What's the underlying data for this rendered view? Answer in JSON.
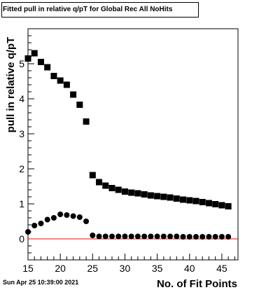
{
  "chart_data": {
    "type": "scatter",
    "title": "Fitted pull in relative q/pT for Global Rec All NoHits",
    "xlabel": "No. of Fit Points",
    "ylabel": "pull in relative q/pT",
    "xlim": [
      15,
      47.5
    ],
    "ylim": [
      -0.6,
      6
    ],
    "x_ticks": [
      15,
      20,
      25,
      30,
      35,
      40,
      45
    ],
    "y_ticks": [
      0,
      1,
      2,
      3,
      4,
      5
    ],
    "reference_line": {
      "y": 0,
      "color": "#ff0000"
    },
    "series": [
      {
        "marker": "square",
        "color": "#000000",
        "points": [
          [
            15,
            5.15
          ],
          [
            16,
            5.3
          ],
          [
            17,
            5.05
          ],
          [
            18,
            4.9
          ],
          [
            19,
            4.65
          ],
          [
            20,
            4.52
          ],
          [
            21,
            4.4
          ],
          [
            22,
            4.12
          ],
          [
            23,
            3.83
          ],
          [
            24,
            3.35
          ],
          [
            25,
            1.82
          ],
          [
            26,
            1.62
          ],
          [
            27,
            1.52
          ],
          [
            28,
            1.45
          ],
          [
            29,
            1.4
          ],
          [
            30,
            1.35
          ],
          [
            31,
            1.32
          ],
          [
            32,
            1.3
          ],
          [
            33,
            1.27
          ],
          [
            34,
            1.24
          ],
          [
            35,
            1.22
          ],
          [
            36,
            1.2
          ],
          [
            37,
            1.18
          ],
          [
            38,
            1.15
          ],
          [
            39,
            1.12
          ],
          [
            40,
            1.1
          ],
          [
            41,
            1.08
          ],
          [
            42,
            1.05
          ],
          [
            43,
            1.02
          ],
          [
            44,
            0.99
          ],
          [
            45,
            0.96
          ],
          [
            46,
            0.93
          ]
        ]
      },
      {
        "marker": "circle",
        "color": "#000000",
        "points": [
          [
            15,
            0.2
          ],
          [
            16,
            0.38
          ],
          [
            17,
            0.44
          ],
          [
            18,
            0.55
          ],
          [
            19,
            0.6
          ],
          [
            20,
            0.7
          ],
          [
            21,
            0.68
          ],
          [
            22,
            0.65
          ],
          [
            23,
            0.62
          ],
          [
            24,
            0.5
          ],
          [
            25,
            0.1
          ],
          [
            26,
            0.07
          ],
          [
            27,
            0.07
          ],
          [
            28,
            0.07
          ],
          [
            29,
            0.07
          ],
          [
            30,
            0.07
          ],
          [
            31,
            0.07
          ],
          [
            32,
            0.07
          ],
          [
            33,
            0.07
          ],
          [
            34,
            0.07
          ],
          [
            35,
            0.07
          ],
          [
            36,
            0.07
          ],
          [
            37,
            0.07
          ],
          [
            38,
            0.07
          ],
          [
            39,
            0.06
          ],
          [
            40,
            0.06
          ],
          [
            41,
            0.06
          ],
          [
            42,
            0.06
          ],
          [
            43,
            0.06
          ],
          [
            44,
            0.06
          ],
          [
            45,
            0.06
          ],
          [
            46,
            0.06
          ]
        ]
      }
    ]
  },
  "footer": {
    "timestamp": "Sun Apr 25 10:39:00 2021"
  }
}
